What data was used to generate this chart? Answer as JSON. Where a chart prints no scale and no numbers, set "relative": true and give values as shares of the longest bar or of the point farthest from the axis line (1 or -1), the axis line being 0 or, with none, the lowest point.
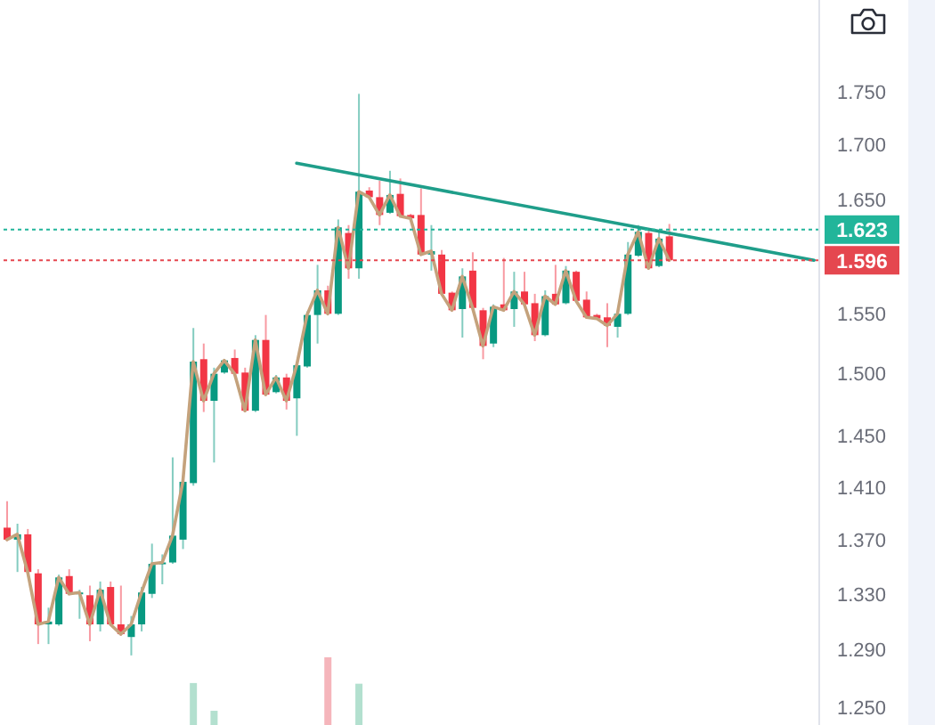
{
  "chart_data": [
    {
      "type": "candlestick",
      "categories": [
        null,
        null,
        null,
        null,
        null,
        null,
        null,
        null,
        null,
        null,
        null,
        null,
        null,
        null,
        null,
        null,
        null,
        null,
        null,
        null,
        null,
        null,
        null,
        null,
        null,
        null,
        null,
        null,
        null,
        null,
        null,
        null,
        null,
        null,
        null,
        null,
        null,
        null,
        null,
        null,
        null,
        null,
        null,
        null,
        null,
        null,
        null,
        null,
        null,
        null,
        null,
        null,
        null,
        null,
        null,
        null,
        null,
        null,
        null,
        null,
        null,
        null,
        null,
        null,
        null,
        null,
        null,
        null,
        null,
        null,
        null,
        null,
        null,
        null,
        null,
        null,
        null,
        null,
        null
      ],
      "ohlc": [
        [
          1.379,
          1.399,
          1.369,
          1.37
        ],
        [
          1.37,
          1.382,
          1.346,
          1.374
        ],
        [
          1.374,
          1.378,
          1.345,
          1.346
        ],
        [
          1.345,
          1.348,
          1.294,
          1.308
        ],
        [
          1.308,
          1.32,
          1.294,
          1.31
        ],
        [
          1.308,
          1.344,
          1.307,
          1.342
        ],
        [
          1.343,
          1.348,
          1.329,
          1.33
        ],
        [
          1.33,
          1.333,
          1.312,
          1.331
        ],
        [
          1.329,
          1.336,
          1.296,
          1.308
        ],
        [
          1.308,
          1.339,
          1.303,
          1.333
        ],
        [
          1.335,
          1.339,
          1.307,
          1.308
        ],
        [
          1.308,
          1.336,
          1.3,
          1.301
        ],
        [
          1.299,
          1.314,
          1.286,
          1.308
        ],
        [
          1.308,
          1.335,
          1.303,
          1.331
        ],
        [
          1.33,
          1.367,
          1.327,
          1.352
        ],
        [
          1.352,
          1.359,
          1.337,
          1.353
        ],
        [
          1.353,
          1.433,
          1.352,
          1.373
        ],
        [
          1.37,
          1.416,
          1.363,
          1.414
        ],
        [
          1.413,
          1.538,
          1.411,
          1.51
        ],
        [
          1.512,
          1.525,
          1.469,
          1.478
        ],
        [
          1.478,
          1.505,
          1.429,
          1.5
        ],
        [
          1.501,
          1.512,
          1.5,
          1.511
        ],
        [
          1.513,
          1.52,
          1.499,
          1.5
        ],
        [
          1.501,
          1.505,
          1.469,
          1.47
        ],
        [
          1.47,
          1.532,
          1.469,
          1.528
        ],
        [
          1.528,
          1.549,
          1.482,
          1.483
        ],
        [
          1.485,
          1.499,
          1.484,
          1.497
        ],
        [
          1.497,
          1.5,
          1.471,
          1.478
        ],
        [
          1.48,
          1.51,
          1.45,
          1.507
        ],
        [
          1.506,
          1.552,
          1.505,
          1.549
        ],
        [
          1.549,
          1.592,
          1.525,
          1.57
        ],
        [
          1.57,
          1.574,
          1.549,
          1.55
        ],
        [
          1.55,
          1.632,
          1.549,
          1.625
        ],
        [
          1.62,
          1.627,
          1.58,
          1.589
        ],
        [
          1.589,
          1.748,
          1.58,
          1.657
        ],
        [
          1.658,
          1.661,
          1.651,
          1.652
        ],
        [
          1.652,
          1.667,
          1.627,
          1.636
        ],
        [
          1.638,
          1.676,
          1.637,
          1.654
        ],
        [
          1.655,
          1.669,
          1.634,
          1.635
        ],
        [
          1.636,
          1.637,
          1.632,
          1.633
        ],
        [
          1.636,
          1.66,
          1.6,
          1.601
        ],
        [
          1.601,
          1.627,
          1.587,
          1.604
        ],
        [
          1.601,
          1.605,
          1.566,
          1.567
        ],
        [
          1.568,
          1.569,
          1.552,
          1.553
        ],
        [
          1.554,
          1.589,
          1.53,
          1.582
        ],
        [
          1.587,
          1.603,
          1.554,
          1.555
        ],
        [
          1.553,
          1.555,
          1.512,
          1.523
        ],
        [
          1.525,
          1.558,
          1.522,
          1.556
        ],
        [
          1.558,
          1.598,
          1.552,
          1.553
        ],
        [
          1.554,
          1.586,
          1.539,
          1.569
        ],
        [
          1.569,
          1.586,
          1.557,
          1.558
        ],
        [
          1.559,
          1.567,
          1.527,
          1.532
        ],
        [
          1.532,
          1.57,
          1.531,
          1.565
        ],
        [
          1.567,
          1.592,
          1.557,
          1.558
        ],
        [
          1.559,
          1.591,
          1.558,
          1.587
        ],
        [
          1.586,
          1.587,
          1.56,
          1.561
        ],
        [
          1.562,
          1.569,
          1.546,
          1.547
        ],
        [
          1.549,
          1.55,
          1.545,
          1.546
        ],
        [
          1.547,
          1.559,
          1.522,
          1.54
        ],
        [
          1.539,
          1.551,
          1.53,
          1.55
        ],
        [
          1.55,
          1.612,
          1.549,
          1.601
        ],
        [
          1.6,
          1.627,
          1.599,
          1.621
        ],
        [
          1.62,
          1.624,
          1.588,
          1.589
        ],
        [
          1.591,
          1.622,
          1.59,
          1.615
        ],
        [
          1.617,
          1.628,
          1.595,
          1.596
        ],
        null,
        null,
        null,
        null,
        null,
        null,
        null,
        null,
        null,
        null,
        null,
        null,
        null,
        null
      ],
      "colors": [
        "#f23645",
        "#089981",
        "#f23645",
        "#f23645",
        "#089981",
        "#089981",
        "#f23645",
        "#089981",
        "#f23645",
        "#089981",
        "#f23645",
        "#f23645",
        "#089981",
        "#089981",
        "#089981",
        "#089981",
        "#089981",
        "#089981",
        "#089981",
        "#f23645",
        "#089981",
        "#089981",
        "#f23645",
        "#f23645",
        "#089981",
        "#f23645",
        "#089981",
        "#f23645",
        "#089981",
        "#089981",
        "#089981",
        "#f23645",
        "#089981",
        "#f23645",
        "#089981",
        "#f23645",
        "#f23645",
        "#089981",
        "#f23645",
        "#f23645",
        "#f23645",
        "#089981",
        "#f23645",
        "#f23645",
        "#089981",
        "#f23645",
        "#f23645",
        "#089981",
        "#f23645",
        "#089981",
        "#f23645",
        "#f23645",
        "#089981",
        "#f23645",
        "#089981",
        "#f23645",
        "#f23645",
        "#f23645",
        "#f23645",
        "#089981",
        "#089981",
        "#089981",
        "#f23645",
        "#089981",
        "#f23645",
        null,
        null,
        null,
        null,
        null,
        null,
        null,
        null,
        null,
        null,
        null,
        null,
        null,
        null
      ],
      "series": [
        {
          "type": "line",
          "color": "#c4a27c",
          "values": [
            1.37,
            1.374,
            1.346,
            1.308,
            1.31,
            1.342,
            1.33,
            1.331,
            1.308,
            1.333,
            1.308,
            1.301,
            1.308,
            1.331,
            1.352,
            1.353,
            1.373,
            1.414,
            1.51,
            1.478,
            1.5,
            1.511,
            1.5,
            1.47,
            1.528,
            1.483,
            1.497,
            1.478,
            1.507,
            1.549,
            1.57,
            1.55,
            1.625,
            1.589,
            1.657,
            1.652,
            1.636,
            1.654,
            1.635,
            1.633,
            1.601,
            1.604,
            1.567,
            1.553,
            1.582,
            1.555,
            1.523,
            1.556,
            1.553,
            1.569,
            1.558,
            1.532,
            1.565,
            1.558,
            1.587,
            1.561,
            1.547,
            1.546,
            1.54,
            1.55,
            1.601,
            1.621,
            1.589,
            1.615,
            1.596,
            null,
            null,
            null,
            null,
            null,
            null,
            null,
            null,
            null,
            null,
            null,
            null,
            null,
            null
          ]
        },
        {
          "type": "line",
          "color": "#1f9e8a",
          "values": [
            null,
            null,
            null,
            null,
            null,
            null,
            null,
            null,
            null,
            null,
            null,
            null,
            null,
            null,
            null,
            null,
            null,
            null,
            null,
            null,
            null,
            null,
            null,
            null,
            null,
            null,
            null,
            null,
            1.683,
            null,
            null,
            null,
            null,
            null,
            null,
            null,
            null,
            null,
            null,
            null,
            null,
            null,
            null,
            null,
            null,
            null,
            null,
            null,
            null,
            null,
            null,
            null,
            null,
            null,
            null,
            null,
            null,
            null,
            null,
            null,
            null,
            null,
            null,
            null,
            null,
            null,
            null,
            null,
            null,
            null,
            null,
            null,
            null,
            null,
            null,
            null,
            null,
            null,
            1.596
          ]
        }
      ],
      "ylim": [
        1.238,
        1.84
      ],
      "yticks": [
        {
          "value": 1.25,
          "label": "1.250"
        },
        {
          "value": 1.29,
          "label": "1.290"
        },
        {
          "value": 1.33,
          "label": "1.330"
        },
        {
          "value": 1.37,
          "label": "1.370"
        },
        {
          "value": 1.41,
          "label": "1.410"
        },
        {
          "value": 1.45,
          "label": "1.450"
        },
        {
          "value": 1.5,
          "label": "1.500"
        },
        {
          "value": 1.55,
          "label": "1.550"
        },
        {
          "value": 1.65,
          "label": "1.650"
        },
        {
          "value": 1.7,
          "label": "1.700"
        },
        {
          "value": 1.75,
          "label": "1.750"
        }
      ],
      "log": true,
      "tick_labels": "y",
      "ref_lines": [
        {
          "axis": "y",
          "value": 1.623,
          "label": "1.623",
          "color": "#22b59a",
          "line_style": "dotted"
        },
        {
          "axis": "y",
          "value": 1.596,
          "label": "1.596",
          "color": "#e5474f",
          "line_style": "dotted"
        }
      ]
    },
    {
      "type": "bar",
      "relative": true,
      "tick_labels": false,
      "categories": [
        null,
        null,
        null,
        null,
        null,
        null,
        null,
        null,
        null,
        null,
        null,
        null,
        null,
        null,
        null,
        null,
        null,
        null,
        null,
        null,
        null,
        null,
        null,
        null,
        null,
        null,
        null,
        null,
        null,
        null,
        null,
        null,
        null,
        null,
        null,
        null,
        null,
        null,
        null,
        null,
        null,
        null,
        null,
        null,
        null,
        null,
        null,
        null,
        null,
        null,
        null,
        null,
        null,
        null,
        null,
        null,
        null,
        null,
        null,
        null,
        null,
        null,
        null,
        null,
        null,
        null,
        null,
        null,
        null,
        null,
        null,
        null,
        null,
        null,
        null,
        null,
        null,
        null,
        null
      ],
      "colors": [
        null,
        null,
        null,
        null,
        null,
        null,
        null,
        null,
        null,
        null,
        null,
        null,
        null,
        null,
        null,
        null,
        null,
        null,
        "#b3e0cf",
        null,
        "#b3e0cf",
        null,
        null,
        null,
        null,
        null,
        null,
        null,
        null,
        null,
        null,
        "#f5b5bb",
        null,
        null,
        "#b3e0cf",
        null,
        null,
        null,
        null,
        null,
        null,
        null,
        null,
        null,
        null,
        null,
        null,
        null,
        null,
        null,
        null,
        null,
        null,
        null,
        null,
        null,
        null,
        null,
        null,
        null,
        null,
        null,
        null,
        null,
        null,
        null,
        null,
        null,
        null,
        null,
        null,
        null,
        null,
        null,
        null,
        null,
        null,
        null,
        null
      ],
      "values": [
        null,
        null,
        null,
        null,
        null,
        null,
        null,
        null,
        null,
        null,
        null,
        null,
        null,
        null,
        null,
        null,
        null,
        null,
        0.62,
        null,
        0.21,
        null,
        null,
        null,
        null,
        null,
        null,
        null,
        null,
        null,
        null,
        1,
        null,
        null,
        0.61,
        null,
        null,
        null,
        null,
        null,
        null,
        null,
        null,
        null,
        null,
        null,
        null,
        null,
        null,
        null,
        null,
        null,
        null,
        null,
        null,
        null,
        null,
        null,
        null,
        null,
        null,
        null,
        null,
        null,
        null,
        null,
        null,
        null,
        null,
        null,
        null,
        null,
        null,
        null,
        null,
        null,
        null,
        null,
        null
      ]
    }
  ]
}
